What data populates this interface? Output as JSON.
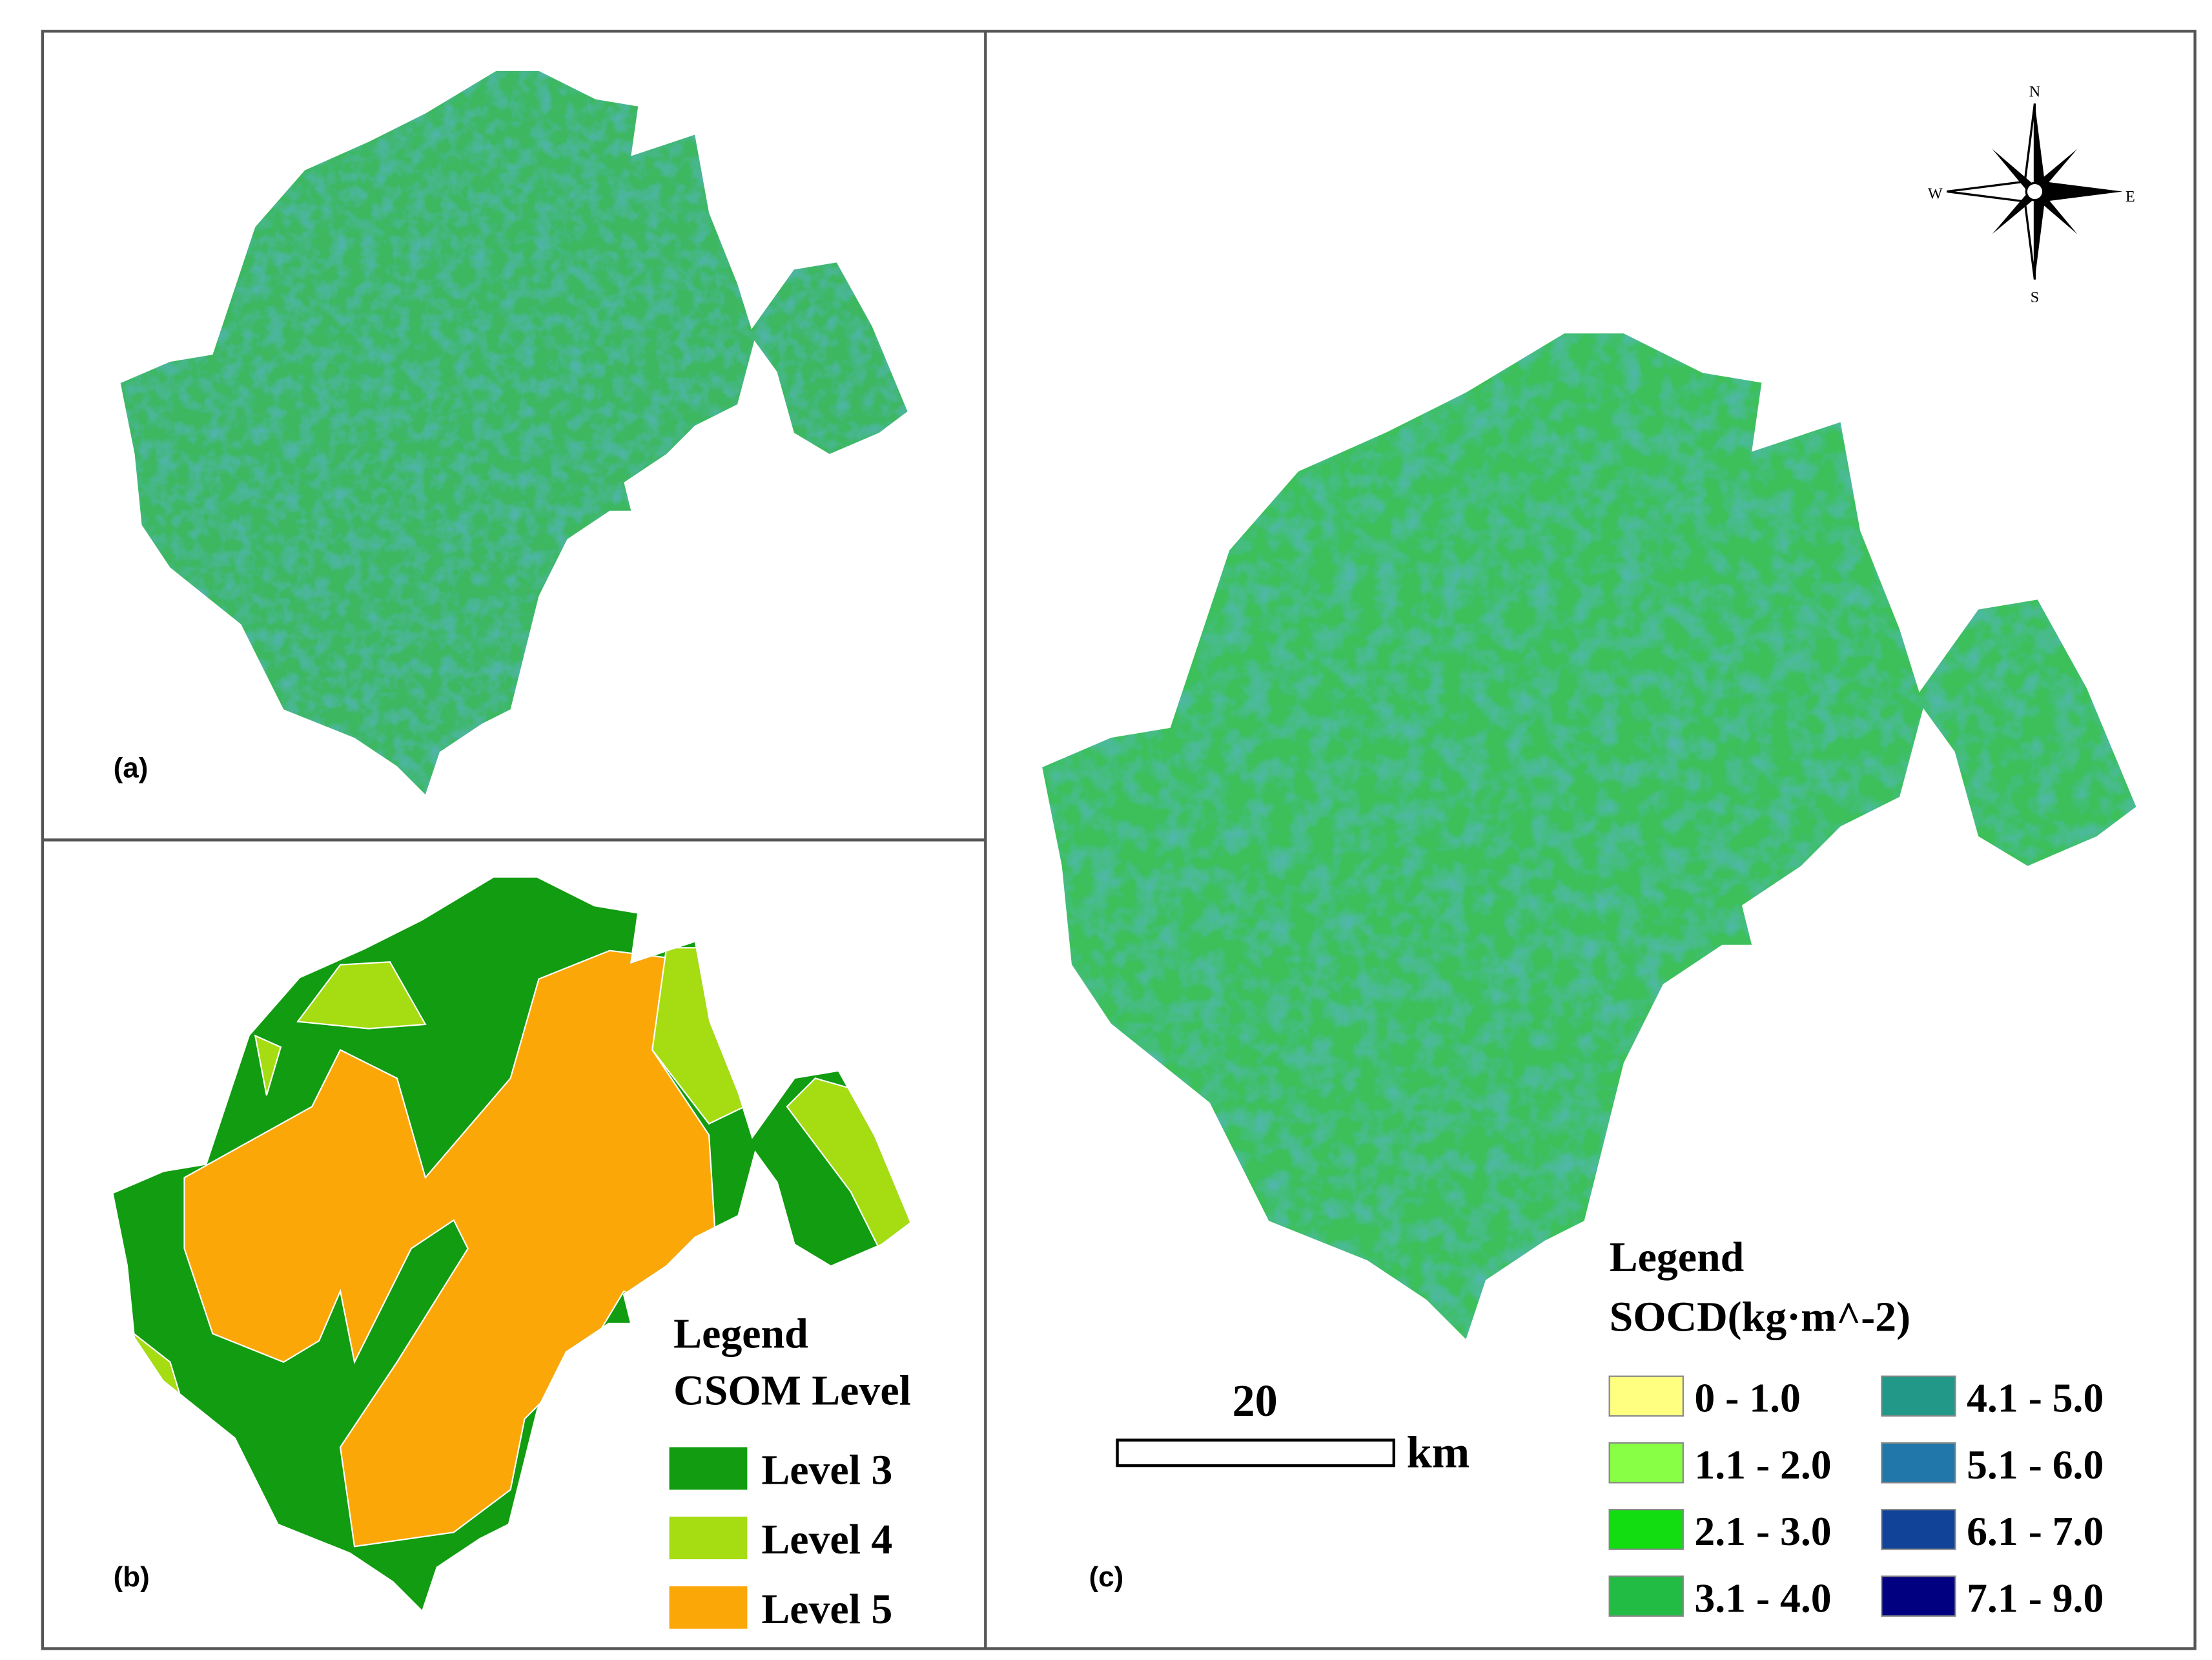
{
  "panel_labels": [
    "(a)",
    "(b)",
    "(c)"
  ],
  "legend_b": {
    "heading": "Legend",
    "title": "CSOM Level",
    "items": [
      {
        "label": "Level 3",
        "color": "#119c11"
      },
      {
        "label": "Level 4",
        "color": "#a6dc12"
      },
      {
        "label": "Level 5",
        "color": "#fba708"
      }
    ]
  },
  "legend_c": {
    "heading": "Legend",
    "title": "SOCD(kg·m^-2)",
    "items": [
      {
        "label": "0 - 1.0",
        "color": "#ffff80"
      },
      {
        "label": "1.1 - 2.0",
        "color": "#88ff44"
      },
      {
        "label": "2.1 - 3.0",
        "color": "#11dd11"
      },
      {
        "label": "3.1 - 4.0",
        "color": "#22bb44"
      },
      {
        "label": "4.1 - 5.0",
        "color": "#229988"
      },
      {
        "label": "5.1 - 6.0",
        "color": "#2277aa"
      },
      {
        "label": "6.1 - 7.0",
        "color": "#114499"
      },
      {
        "label": "7.1 - 9.0",
        "color": "#000080"
      }
    ]
  },
  "scale_bar": {
    "value": "20",
    "unit": "km"
  },
  "compass": {
    "north": "N",
    "south": "S",
    "east": "E",
    "west": "W"
  }
}
